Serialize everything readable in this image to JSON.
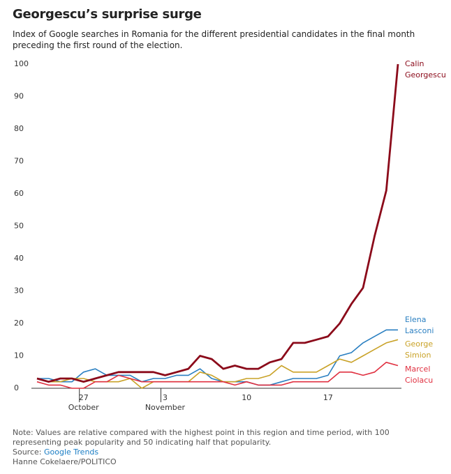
{
  "chart_data": {
    "type": "line",
    "title": "Georgescu’s surprise surge",
    "subtitle": "Index of Google searches in Romania for the different presidential candidates in the final month preceding the first round of the election.",
    "categories": [
      null,
      null,
      null,
      null,
      "27",
      null,
      null,
      null,
      null,
      null,
      null,
      "3",
      null,
      null,
      null,
      null,
      null,
      null,
      "10",
      null,
      null,
      null,
      null,
      null,
      null,
      "17",
      null,
      null,
      null,
      null,
      null,
      null
    ],
    "x_sublabels": [
      null,
      null,
      null,
      null,
      "October",
      null,
      null,
      null,
      null,
      null,
      null,
      "November",
      null,
      null,
      null,
      null,
      null,
      null,
      null,
      null,
      null,
      null,
      null,
      null,
      null,
      null,
      null,
      null,
      null,
      null,
      null,
      null
    ],
    "ylim": [
      0,
      100
    ],
    "yticks": [
      0,
      10,
      20,
      30,
      40,
      50,
      60,
      70,
      80,
      90,
      100
    ],
    "grid": false,
    "series": [
      {
        "name": "Calin Georgescu",
        "color": "#8b0a1a",
        "values": [
          3,
          2,
          3,
          3,
          2,
          3,
          4,
          5,
          5,
          5,
          5,
          4,
          5,
          6,
          10,
          9,
          6,
          7,
          6,
          6,
          8,
          9,
          14,
          14,
          15,
          16,
          20,
          26,
          31,
          47,
          61,
          100
        ]
      },
      {
        "name": "Elena Lasconi",
        "color": "#2a7fc1",
        "values": [
          3,
          3,
          2,
          2,
          5,
          6,
          4,
          4,
          4,
          2,
          3,
          3,
          4,
          4,
          6,
          3,
          2,
          2,
          2,
          1,
          1,
          2,
          3,
          3,
          3,
          4,
          10,
          11,
          14,
          16,
          18,
          18
        ]
      },
      {
        "name": "George Simion",
        "color": "#c9a227",
        "values": [
          3,
          2,
          2,
          3,
          3,
          2,
          2,
          2,
          3,
          0,
          2,
          2,
          2,
          2,
          5,
          4,
          2,
          2,
          3,
          3,
          4,
          7,
          5,
          5,
          5,
          7,
          9,
          8,
          10,
          12,
          14,
          15
        ]
      },
      {
        "name": "Marcel Ciolacu",
        "color": "#e03040",
        "values": [
          2,
          1,
          1,
          0,
          0,
          2,
          2,
          4,
          3,
          2,
          2,
          2,
          2,
          2,
          2,
          2,
          2,
          1,
          2,
          1,
          1,
          1,
          2,
          2,
          2,
          2,
          5,
          5,
          4,
          5,
          8,
          7
        ]
      }
    ],
    "note": "Note: Values are relative compared with the highest point in this region and time period, with 100 representing peak popularity and 50 indicating half that popularity.",
    "source_prefix": "Source:",
    "source": "Google Trends",
    "credit": "Hanne Cokelaere/POLITICO"
  }
}
